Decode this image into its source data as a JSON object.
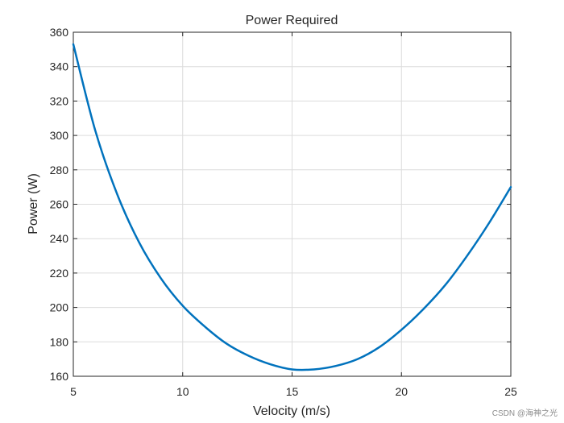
{
  "chart_data": {
    "type": "line",
    "title": "Power Required",
    "xlabel": "Velocity (m/s)",
    "ylabel": "Power (W)",
    "xlim": [
      5,
      25
    ],
    "ylim": [
      160,
      360
    ],
    "xticks": [
      5,
      10,
      15,
      20,
      25
    ],
    "yticks": [
      160,
      180,
      200,
      220,
      240,
      260,
      280,
      300,
      320,
      340,
      360
    ],
    "grid": true,
    "line_color": "#0072BD",
    "series": [
      {
        "x": [
          5,
          6,
          7,
          8,
          9,
          10,
          11,
          12,
          13,
          14,
          15,
          16,
          17,
          18,
          19,
          20,
          21,
          22,
          23,
          24,
          25
        ],
        "values": [
          353,
          303,
          266,
          238,
          217,
          201,
          189,
          179,
          172,
          167,
          164,
          164,
          166,
          170,
          177,
          187,
          199,
          213,
          230,
          249,
          270
        ]
      }
    ]
  },
  "watermark": "CSDN @海神之光"
}
